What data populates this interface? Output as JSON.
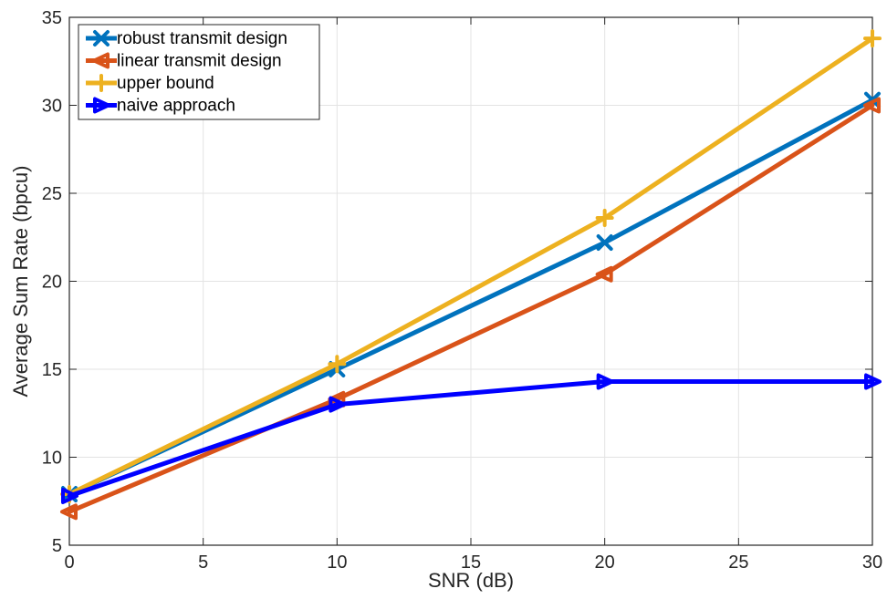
{
  "chart_data": {
    "type": "line",
    "title": "",
    "xlabel": "SNR (dB)",
    "ylabel": "Average Sum Rate (bpcu)",
    "x": [
      0,
      10,
      20,
      30
    ],
    "xlim": [
      0,
      30
    ],
    "ylim": [
      5,
      35
    ],
    "xticks": [
      0,
      5,
      10,
      15,
      20,
      25,
      30
    ],
    "yticks": [
      5,
      10,
      15,
      20,
      25,
      30,
      35
    ],
    "grid": true,
    "legend_position": "top-left",
    "series": [
      {
        "name": "robust transmit design",
        "values": [
          7.9,
          15.0,
          22.2,
          30.3
        ],
        "color": "#0072BD",
        "marker": "x"
      },
      {
        "name": "linear transmit design",
        "values": [
          6.9,
          13.3,
          20.4,
          30.0
        ],
        "color": "#D95319",
        "marker": "triangle-left"
      },
      {
        "name": "upper bound",
        "values": [
          7.9,
          15.3,
          23.6,
          33.8
        ],
        "color": "#EDB120",
        "marker": "plus"
      },
      {
        "name": "naive approach",
        "values": [
          7.8,
          13.0,
          14.3,
          14.3
        ],
        "color": "#0000FF",
        "marker": "triangle-right"
      }
    ]
  }
}
